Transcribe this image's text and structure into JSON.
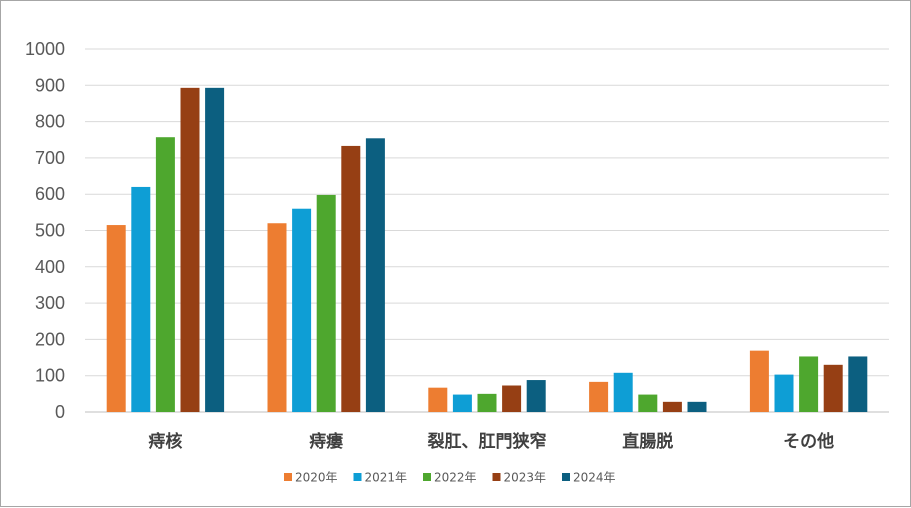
{
  "chart_data": {
    "type": "bar",
    "categories": [
      "痔核",
      "痔瘻",
      "裂肛、肛門狭窄",
      "直腸脱",
      "その他"
    ],
    "series": [
      {
        "name": "2020年",
        "color": "#ed7d31",
        "values": [
          515,
          520,
          67,
          83,
          169
        ]
      },
      {
        "name": "2021年",
        "color": "#0e9ed5",
        "values": [
          620,
          560,
          48,
          108,
          103
        ]
      },
      {
        "name": "2022年",
        "color": "#4ea72e",
        "values": [
          757,
          598,
          50,
          48,
          153
        ]
      },
      {
        "name": "2023年",
        "color": "#963f14",
        "values": [
          893,
          733,
          73,
          28,
          130
        ]
      },
      {
        "name": "2024年",
        "color": "#0c5f80",
        "values": [
          893,
          754,
          88,
          28,
          153
        ]
      }
    ],
    "ylim": [
      0,
      1000
    ],
    "yticks": [
      0,
      100,
      200,
      300,
      400,
      500,
      600,
      700,
      800,
      900,
      1000
    ],
    "grid": true,
    "legend_position": "bottom"
  }
}
